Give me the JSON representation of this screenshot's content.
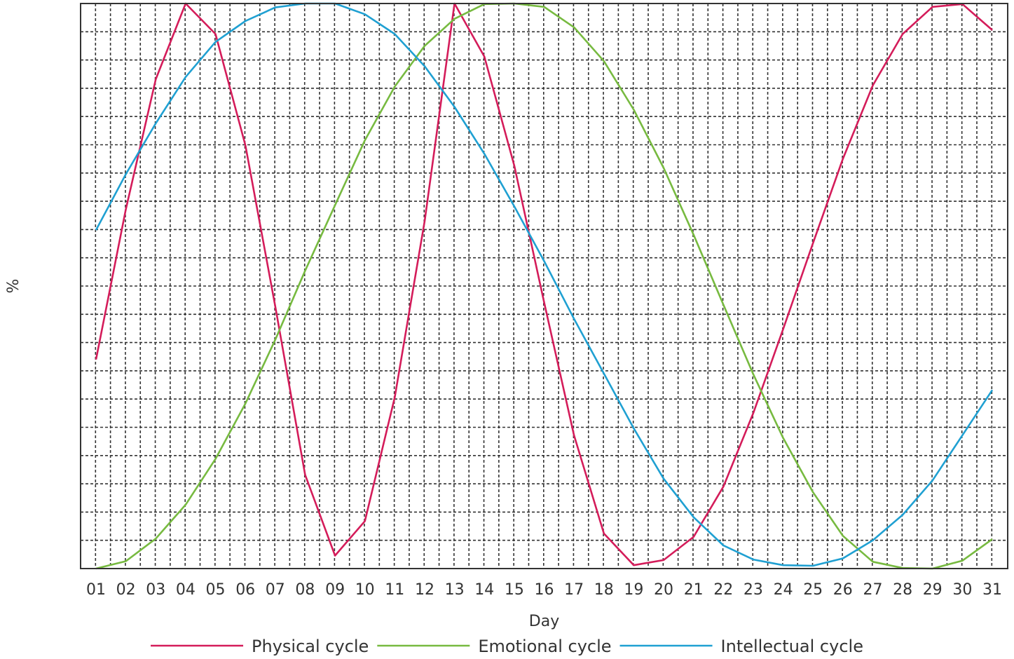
{
  "chart_data": {
    "type": "line",
    "title": "",
    "xlabel": "Day",
    "ylabel": "%",
    "x": [
      "01",
      "02",
      "03",
      "04",
      "05",
      "06",
      "07",
      "08",
      "09",
      "10",
      "11",
      "12",
      "13",
      "14",
      "15",
      "16",
      "17",
      "18",
      "19",
      "20",
      "21",
      "22",
      "23",
      "24",
      "25",
      "26",
      "27",
      "28",
      "29",
      "30",
      "31"
    ],
    "ylim": [
      0,
      100
    ],
    "grid": true,
    "legend_position": "bottom",
    "series": [
      {
        "name": "Physical cycle",
        "color": "#d41c5a",
        "values": [
          37.0,
          63.6,
          86.6,
          100.0,
          94.6,
          74.9,
          46.4,
          16.6,
          2.3,
          8.4,
          30.3,
          61.5,
          100.0,
          90.6,
          71.3,
          47.1,
          23.6,
          6.2,
          0.6,
          1.5,
          5.6,
          14.5,
          27.5,
          42.4,
          57.6,
          72.5,
          85.5,
          94.6,
          99.4,
          99.9,
          95.3
        ]
      },
      {
        "name": "Emotional cycle",
        "color": "#77ba40",
        "values": [
          0.0,
          1.3,
          5.3,
          11.3,
          19.4,
          29.2,
          40.5,
          52.7,
          64.3,
          75.8,
          85.3,
          92.5,
          97.3,
          99.9,
          100.0,
          99.4,
          95.8,
          89.8,
          81.2,
          70.9,
          59.1,
          46.7,
          34.4,
          23.1,
          13.5,
          5.8,
          1.2,
          0.1,
          0.0,
          1.4,
          5.2
        ]
      },
      {
        "name": "Intellectual cycle",
        "color": "#1fa0d2",
        "values": [
          59.9,
          69.8,
          78.8,
          87.0,
          93.2,
          96.9,
          99.3,
          100.0,
          100.0,
          98.1,
          94.6,
          88.9,
          81.7,
          73.4,
          64.1,
          54.4,
          44.2,
          34.5,
          24.8,
          15.9,
          9.1,
          4.1,
          1.6,
          0.6,
          0.5,
          1.8,
          5.0,
          9.5,
          15.6,
          23.6,
          31.6
        ]
      }
    ]
  }
}
